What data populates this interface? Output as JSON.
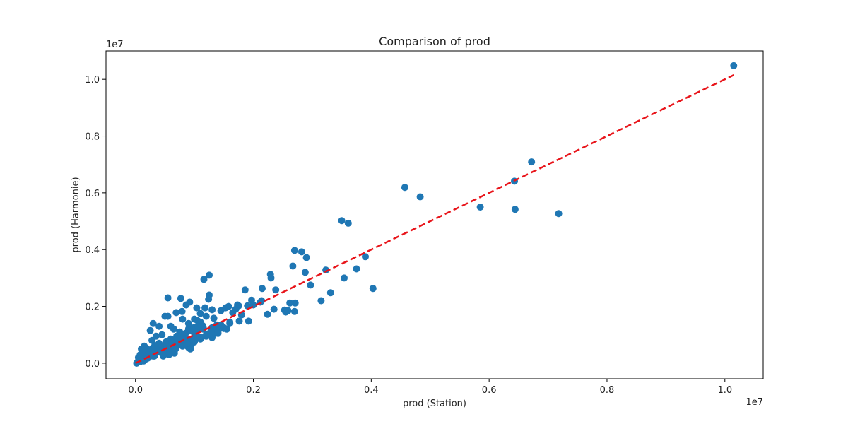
{
  "colors": {
    "points": "#1f77b4",
    "reference_line": "#e8141a",
    "axes": "#000000",
    "background": "#ffffff"
  },
  "chart_data": {
    "type": "scatter",
    "title": "Comparison of prod",
    "xlabel": "prod (Station)",
    "ylabel": "prod (Harmonie)",
    "x_multiplier": "1e7",
    "y_multiplier": "1e7",
    "xlim": [
      -0.05,
      1.065
    ],
    "ylim": [
      -0.055,
      1.1
    ],
    "x_ticks": [
      0.0,
      0.2,
      0.4,
      0.6,
      0.8,
      1.0
    ],
    "y_ticks": [
      0.0,
      0.2,
      0.4,
      0.6,
      0.8,
      1.0
    ],
    "tick_labels": [
      "0.0",
      "0.2",
      "0.4",
      "0.6",
      "0.8",
      "1.0"
    ],
    "grid": false,
    "legend": "none",
    "reference_line": {
      "style": "dashed",
      "from": [
        0.0,
        0.0
      ],
      "to": [
        1.015,
        1.015
      ]
    },
    "series": [
      {
        "x": [
          1.015,
          0.718,
          0.672,
          0.644,
          0.643,
          0.585,
          0.483,
          0.457,
          0.403,
          0.39,
          0.375,
          0.361,
          0.354,
          0.35,
          0.331,
          0.323,
          0.315,
          0.297,
          0.288,
          0.282,
          0.27,
          0.267,
          0.271,
          0.262,
          0.253,
          0.255,
          0.259,
          0.27,
          0.29,
          0.229,
          0.23,
          0.235,
          0.238,
          0.224,
          0.214,
          0.215,
          0.212,
          0.197,
          0.192,
          0.19,
          0.18,
          0.176,
          0.16,
          0.153,
          0.145,
          0.138,
          0.13,
          0.125,
          0.125,
          0.124,
          0.118,
          0.116,
          0.11,
          0.104,
          0.1,
          0.092,
          0.09,
          0.086,
          0.079,
          0.077,
          0.069,
          0.055,
          0.2,
          0.186,
          0.175,
          0.165,
          0.173,
          0.158,
          0.15,
          0.145,
          0.135,
          0.133,
          0.17,
          0.03,
          0.04,
          0.025,
          0.01,
          0.005,
          0.015,
          0.02,
          0.012,
          0.028,
          0.035,
          0.045,
          0.05,
          0.055,
          0.06,
          0.065,
          0.07,
          0.075,
          0.08,
          0.085,
          0.09,
          0.095,
          0.1,
          0.105,
          0.11,
          0.115,
          0.12,
          0.03,
          0.04,
          0.05,
          0.06,
          0.07,
          0.08,
          0.09,
          0.1,
          0.11,
          0.12,
          0.13,
          0.14,
          0.045,
          0.06,
          0.075,
          0.09,
          0.105,
          0.12,
          0.135,
          0.15,
          0.02,
          0.035,
          0.05,
          0.065,
          0.08,
          0.095,
          0.11,
          0.125,
          0.14,
          0.155,
          0.025,
          0.04,
          0.055,
          0.07,
          0.085,
          0.1,
          0.115,
          0.13,
          0.145,
          0.16,
          0.018,
          0.03,
          0.042,
          0.054,
          0.066,
          0.078,
          0.09,
          0.102,
          0.114,
          0.008,
          0.015,
          0.022,
          0.029,
          0.036,
          0.043,
          0.05,
          0.057,
          0.064,
          0.071,
          0.078,
          0.085,
          0.092,
          0.099,
          0.106,
          0.002,
          0.004,
          0.006,
          0.01,
          0.014,
          0.018,
          0.024,
          0.032,
          0.038,
          0.048,
          0.058,
          0.068,
          0.072,
          0.082,
          0.088,
          0.095,
          0.103,
          0.112,
          0.122,
          0.128,
          0.138,
          0.042,
          0.052,
          0.062,
          0.072,
          0.057,
          0.066,
          0.083,
          0.093,
          0.047,
          0.067,
          0.087,
          0.012,
          0.019,
          0.027,
          0.033,
          0.021,
          0.008
        ],
        "y": [
          1.048,
          0.527,
          0.709,
          0.542,
          0.641,
          0.55,
          0.586,
          0.619,
          0.263,
          0.375,
          0.332,
          0.493,
          0.3,
          0.502,
          0.248,
          0.328,
          0.22,
          0.275,
          0.32,
          0.392,
          0.397,
          0.342,
          0.212,
          0.212,
          0.187,
          0.18,
          0.185,
          0.182,
          0.372,
          0.313,
          0.3,
          0.19,
          0.258,
          0.172,
          0.22,
          0.263,
          0.215,
          0.222,
          0.148,
          0.202,
          0.17,
          0.148,
          0.145,
          0.195,
          0.185,
          0.135,
          0.188,
          0.31,
          0.24,
          0.225,
          0.195,
          0.295,
          0.175,
          0.195,
          0.155,
          0.215,
          0.12,
          0.205,
          0.182,
          0.228,
          0.178,
          0.23,
          0.205,
          0.258,
          0.202,
          0.178,
          0.205,
          0.2,
          0.122,
          0.132,
          0.125,
          0.158,
          0.19,
          0.14,
          0.13,
          0.115,
          0.05,
          0.02,
          0.06,
          0.03,
          0.01,
          0.08,
          0.095,
          0.04,
          0.165,
          0.165,
          0.13,
          0.12,
          0.095,
          0.11,
          0.155,
          0.105,
          0.14,
          0.12,
          0.105,
          0.15,
          0.145,
          0.125,
          0.165,
          0.055,
          0.07,
          0.045,
          0.065,
          0.06,
          0.06,
          0.055,
          0.075,
          0.085,
          0.095,
          0.09,
          0.11,
          0.1,
          0.085,
          0.08,
          0.12,
          0.115,
          0.1,
          0.105,
          0.125,
          0.025,
          0.045,
          0.035,
          0.05,
          0.075,
          0.065,
          0.09,
          0.1,
          0.105,
          0.12,
          0.035,
          0.058,
          0.075,
          0.095,
          0.088,
          0.12,
          0.12,
          0.125,
          0.135,
          0.14,
          0.015,
          0.025,
          0.038,
          0.048,
          0.065,
          0.07,
          0.082,
          0.11,
          0.132,
          0.005,
          0.01,
          0.02,
          0.035,
          0.04,
          0.052,
          0.06,
          0.07,
          0.078,
          0.09,
          0.098,
          0.105,
          0.115,
          0.125,
          0.13,
          0.0,
          0.005,
          0.01,
          0.015,
          0.008,
          0.03,
          0.04,
          0.025,
          0.055,
          0.045,
          0.04,
          0.05,
          0.08,
          0.07,
          0.06,
          0.085,
          0.095,
          0.09,
          0.1,
          0.115,
          0.125,
          0.06,
          0.075,
          0.072,
          0.085,
          0.03,
          0.035,
          0.065,
          0.05,
          0.025,
          0.048,
          0.07,
          0.045,
          0.052,
          0.042,
          0.062,
          0.018,
          0.03
        ]
      }
    ]
  }
}
